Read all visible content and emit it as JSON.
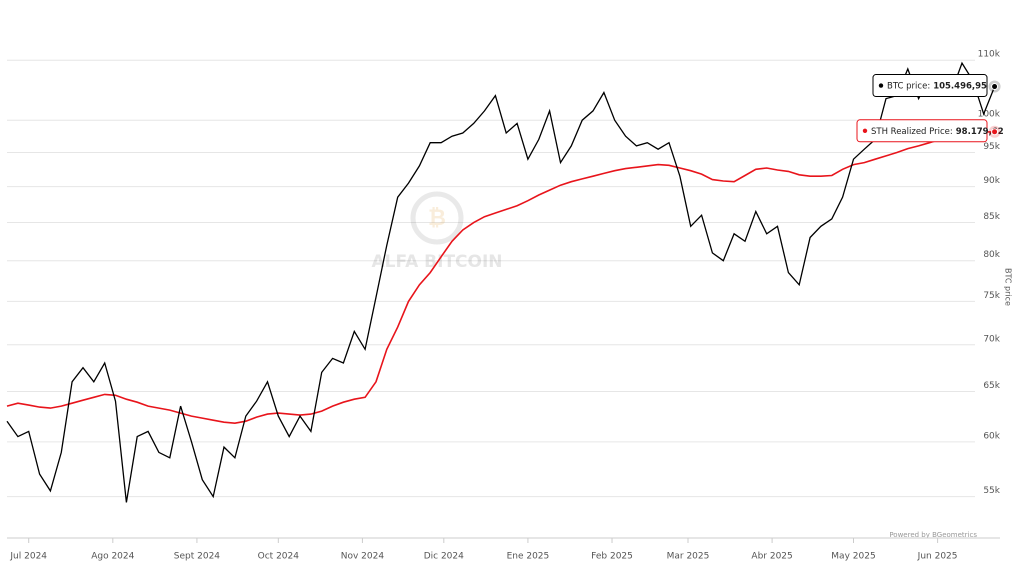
{
  "chart_data": {
    "type": "line",
    "x": [
      0,
      4,
      8,
      12,
      16,
      20,
      24,
      28,
      32,
      36,
      40,
      44,
      48,
      52,
      56,
      60,
      64,
      68,
      72,
      76,
      80,
      84,
      88,
      92,
      96,
      100,
      104,
      108,
      112,
      116,
      120,
      124,
      128,
      132,
      136,
      140,
      144,
      148,
      152,
      156,
      160,
      164,
      168,
      172,
      176,
      180,
      184,
      188,
      192,
      196,
      200,
      204,
      208,
      212,
      216,
      220,
      224,
      228,
      232,
      236,
      240,
      244,
      248,
      252,
      256,
      260,
      264,
      268,
      272,
      276,
      280,
      284,
      288,
      292,
      296,
      300,
      304,
      308,
      312,
      316,
      320,
      324,
      328,
      332,
      336,
      340,
      344,
      348,
      352,
      356,
      360,
      364
    ],
    "series": [
      {
        "name": "BTC price",
        "color": "#000000",
        "values": [
          62000,
          60500,
          61000,
          57000,
          55500,
          59000,
          66000,
          67500,
          66000,
          68000,
          64000,
          54500,
          60500,
          61000,
          59000,
          58500,
          63500,
          60000,
          56500,
          55000,
          59500,
          58500,
          62500,
          64000,
          66000,
          62500,
          60500,
          62500,
          61000,
          67000,
          68500,
          68000,
          71500,
          69500,
          75500,
          82000,
          88500,
          90500,
          93000,
          96500,
          96500,
          97500,
          98000,
          99500,
          101500,
          104000,
          98000,
          99500,
          94000,
          97000,
          101500,
          93500,
          96000,
          100000,
          101500,
          104500,
          100000,
          97500,
          96000,
          96500,
          95500,
          96500,
          91500,
          84500,
          86000,
          81000,
          80000,
          83500,
          82500,
          86500,
          83500,
          84500,
          78500,
          77000,
          83000,
          84500,
          85500,
          88500,
          94000,
          95500,
          97000,
          103500,
          104000,
          108500,
          103500,
          107000,
          105000,
          104500,
          109500,
          106500,
          101000,
          105496.95
        ]
      },
      {
        "name": "STH Realized Price",
        "color": "#e8141b",
        "values": [
          63500,
          63800,
          63600,
          63400,
          63300,
          63500,
          63800,
          64100,
          64400,
          64700,
          64600,
          64200,
          63900,
          63500,
          63300,
          63100,
          62800,
          62500,
          62300,
          62100,
          61900,
          61800,
          62000,
          62400,
          62700,
          62800,
          62700,
          62600,
          62700,
          63000,
          63500,
          63900,
          64200,
          64400,
          66000,
          69500,
          72000,
          75000,
          77000,
          78500,
          80500,
          82500,
          84000,
          85000,
          85800,
          86300,
          86800,
          87300,
          88000,
          88800,
          89500,
          90200,
          90700,
          91100,
          91500,
          91900,
          92300,
          92600,
          92800,
          93000,
          93200,
          93100,
          92700,
          92300,
          91800,
          91000,
          90800,
          90700,
          91600,
          92500,
          92700,
          92400,
          92200,
          91700,
          91500,
          91500,
          91600,
          92500,
          93200,
          93500,
          94000,
          94500,
          95000,
          95600,
          96000,
          96500,
          97000,
          97500,
          97900,
          98050,
          98150,
          98179.62
        ]
      }
    ],
    "xlim": [
      0,
      366
    ],
    "xticks": [
      {
        "value": 8,
        "label": "Jul 2024"
      },
      {
        "value": 39,
        "label": "Ago 2024"
      },
      {
        "value": 70,
        "label": "Sept 2024"
      },
      {
        "value": 100,
        "label": "Oct 2024"
      },
      {
        "value": 131,
        "label": "Nov 2024"
      },
      {
        "value": 161,
        "label": "Dic 2024"
      },
      {
        "value": 192,
        "label": "Ene 2025"
      },
      {
        "value": 223,
        "label": "Feb 2025"
      },
      {
        "value": 251,
        "label": "Mar 2025"
      },
      {
        "value": 282,
        "label": "Abr 2025"
      },
      {
        "value": 312,
        "label": "May 2025"
      },
      {
        "value": 343,
        "label": "Jun 2025"
      }
    ],
    "ylim": [
      51500,
      114500
    ],
    "yscale": "log",
    "yticks": [
      {
        "value": 55000,
        "label": "55k"
      },
      {
        "value": 60000,
        "label": "60k"
      },
      {
        "value": 65000,
        "label": "65k"
      },
      {
        "value": 70000,
        "label": "70k"
      },
      {
        "value": 75000,
        "label": "75k"
      },
      {
        "value": 80000,
        "label": "80k"
      },
      {
        "value": 85000,
        "label": "85k"
      },
      {
        "value": 90000,
        "label": "90k"
      },
      {
        "value": 95000,
        "label": "95k"
      },
      {
        "value": 100000,
        "label": "100k"
      },
      {
        "value": 110000,
        "label": "110k"
      }
    ],
    "grid": true,
    "y_axis_label": "BTC price",
    "tooltips": [
      {
        "label": "BTC price:",
        "value_label": "105.496,95"
      },
      {
        "label": "STH Realized Price:",
        "value_label": "98.179,62"
      }
    ],
    "watermark": "ALFA BITCOIN",
    "credit": "Powered by BGeometrics"
  }
}
